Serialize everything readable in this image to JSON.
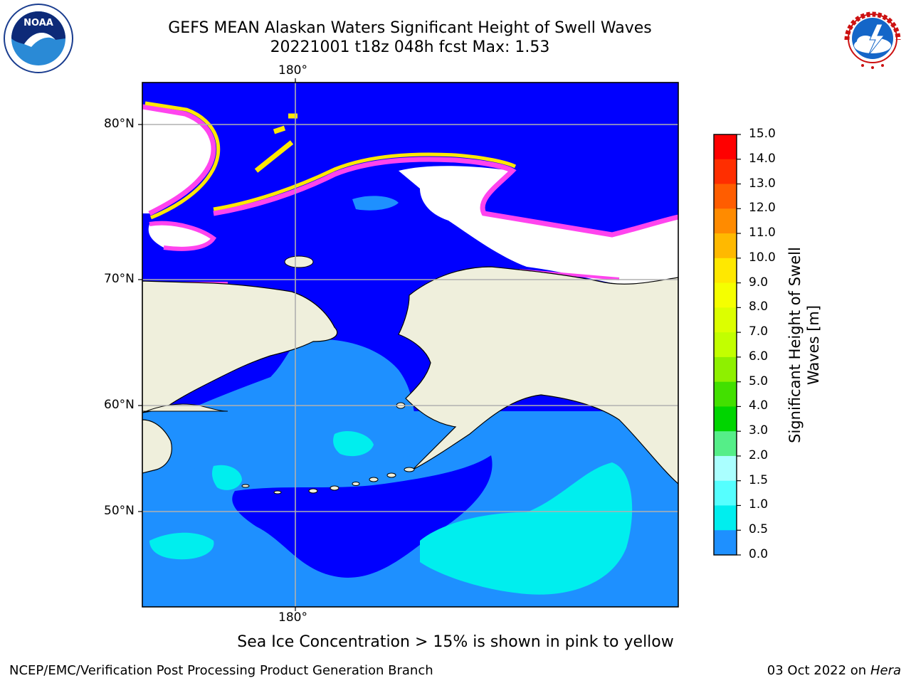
{
  "title": {
    "line1": "GEFS MEAN Alaskan Waters Significant Height of Swell Waves",
    "line2": "20221001 t18z 048h fcst   Max: 1.53"
  },
  "map": {
    "lon_label_top": "180°",
    "lon_label_bottom": "180°",
    "lat_labels": [
      "80°N",
      "70°N",
      "60°N",
      "50°N"
    ]
  },
  "colorbar": {
    "label": "Significant Height of Swell Waves [m]",
    "ticks": [
      "15.0",
      "14.0",
      "13.0",
      "12.0",
      "11.0",
      "10.0",
      "9.0",
      "8.0",
      "7.0",
      "6.0",
      "5.0",
      "4.0",
      "3.0",
      "2.0",
      "1.5",
      "1.0",
      "0.5",
      "0.0"
    ],
    "colors": [
      "#ff0000",
      "#ff2e00",
      "#ff5d00",
      "#ff8b00",
      "#ffb900",
      "#ffe800",
      "#f5ff00",
      "#dcff00",
      "#c2ff00",
      "#8ef000",
      "#42e000",
      "#00d500",
      "#55ee88",
      "#aaffff",
      "#55ffff",
      "#00eeee",
      "#1e90ff",
      "#0000ff"
    ]
  },
  "notes": {
    "ice": "Sea Ice Concentration > 15% is shown in pink to yellow"
  },
  "footer": {
    "left": "NCEP/EMC/Verification Post Processing Product Generation Branch",
    "right_date": "03 Oct 2022 on ",
    "right_host": "Hera"
  },
  "logos": {
    "noaa_text": "NOAA",
    "nws_text": "NATIONAL WEATHER SERVICE"
  },
  "legend_colors": {
    "land": "#efefdc",
    "ocean_low": "#0000ff",
    "ocean_mid": "#1e90ff",
    "ocean_high": "#00eeee",
    "ice_edge": "#ff44ee",
    "ice_mid": "#ffe800"
  }
}
